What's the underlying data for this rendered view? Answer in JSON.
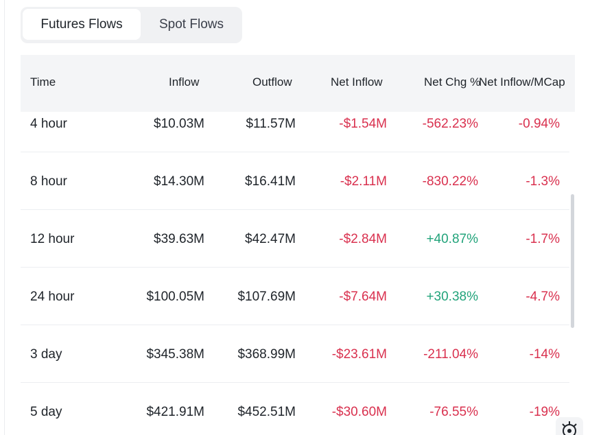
{
  "tabs": [
    {
      "label": "Futures Flows",
      "active": true
    },
    {
      "label": "Spot Flows",
      "active": false
    }
  ],
  "table": {
    "headers": [
      "Time",
      "Inflow",
      "Outflow",
      "Net Inflow",
      "Net Chg %",
      "Net Inflow/MCap"
    ],
    "rows": [
      {
        "time": "4 hour",
        "inflow": "$10.03M",
        "outflow": "$11.57M",
        "net_inflow": "-$1.54M",
        "net_chg": "-562.23%",
        "net_mcap": "-0.94%"
      },
      {
        "time": "8 hour",
        "inflow": "$14.30M",
        "outflow": "$16.41M",
        "net_inflow": "-$2.11M",
        "net_chg": "-830.22%",
        "net_mcap": "-1.3%"
      },
      {
        "time": "12 hour",
        "inflow": "$39.63M",
        "outflow": "$42.47M",
        "net_inflow": "-$2.84M",
        "net_chg": "+40.87%",
        "net_mcap": "-1.7%"
      },
      {
        "time": "24 hour",
        "inflow": "$100.05M",
        "outflow": "$107.69M",
        "net_inflow": "-$7.64M",
        "net_chg": "+30.38%",
        "net_mcap": "-4.7%"
      },
      {
        "time": "3 day",
        "inflow": "$345.38M",
        "outflow": "$368.99M",
        "net_inflow": "-$23.61M",
        "net_chg": "-211.04%",
        "net_mcap": "-14%"
      },
      {
        "time": "5 day",
        "inflow": "$421.91M",
        "outflow": "$452.51M",
        "net_inflow": "-$30.60M",
        "net_chg": "-76.55%",
        "net_mcap": "-19%"
      }
    ]
  },
  "colors": {
    "negative": "#d9304e",
    "positive": "#21a37a"
  },
  "icons": {
    "corner": "settings-icon"
  }
}
